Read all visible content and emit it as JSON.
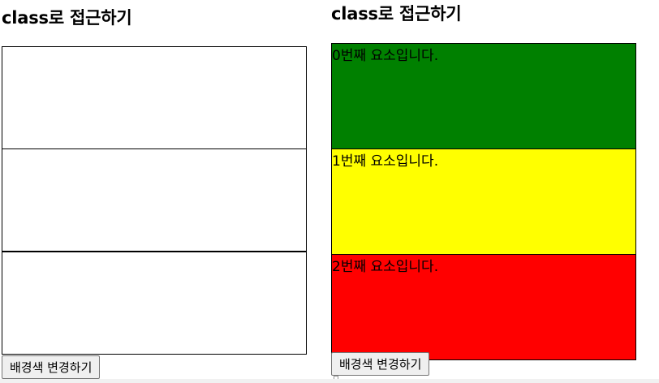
{
  "left_panel": {
    "heading": "class로 접근하기",
    "boxes": [
      {
        "text": ""
      },
      {
        "text": ""
      },
      {
        "text": ""
      }
    ],
    "button_label": "배경색 변경하기"
  },
  "right_panel": {
    "heading": "class로 접근하기",
    "boxes": [
      {
        "text": "0번째 요소입니다.",
        "background": "#008000"
      },
      {
        "text": "1번째 요소입니다.",
        "background": "#ffff00"
      },
      {
        "text": "2번째 요소입니다.",
        "background": "#ff0000"
      }
    ],
    "button_label": "배경색 변경하기"
  }
}
